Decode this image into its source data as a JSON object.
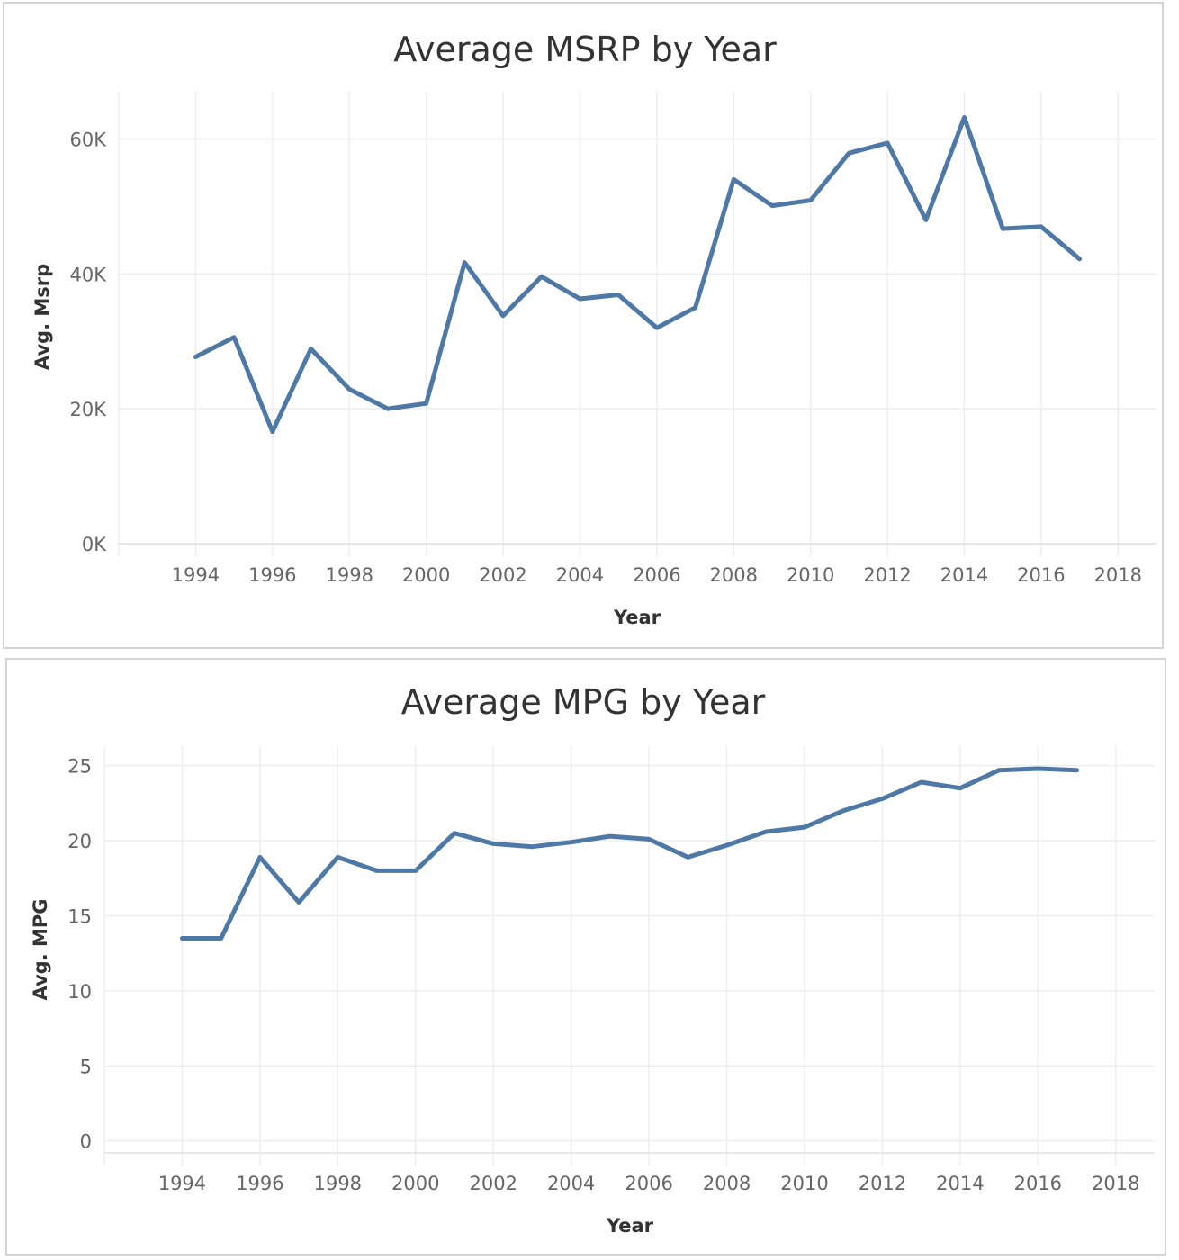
{
  "chart_data": [
    {
      "type": "line",
      "title": "Average MSRP by Year",
      "xlabel": "Year",
      "ylabel": "Avg. Msrp",
      "xlim": [
        1992,
        2019
      ],
      "ylim": [
        0,
        67000
      ],
      "x_ticks": [
        1994,
        1996,
        1998,
        2000,
        2002,
        2004,
        2006,
        2008,
        2010,
        2012,
        2014,
        2016,
        2018
      ],
      "y_ticks": [
        0,
        20000,
        40000,
        60000
      ],
      "y_tick_labels": [
        "0K",
        "20K",
        "40K",
        "60K"
      ],
      "grid": true,
      "color": "#4e79a7",
      "x": [
        1994,
        1995,
        1996,
        1997,
        1998,
        1999,
        2000,
        2001,
        2002,
        2003,
        2004,
        2005,
        2006,
        2007,
        2008,
        2009,
        2010,
        2011,
        2012,
        2013,
        2014,
        2015,
        2016,
        2017
      ],
      "values": [
        27700,
        30600,
        16600,
        28900,
        22900,
        20000,
        20800,
        41700,
        33800,
        39600,
        36300,
        36900,
        32000,
        35000,
        54000,
        50100,
        50900,
        57900,
        59400,
        48000,
        63200,
        46700,
        47000,
        42200
      ]
    },
    {
      "type": "line",
      "title": "Average MPG by Year",
      "xlabel": "Year",
      "ylabel": "Avg. MPG",
      "xlim": [
        1992,
        2019
      ],
      "ylim": [
        -0.8,
        26.3
      ],
      "x_ticks": [
        1994,
        1996,
        1998,
        2000,
        2002,
        2004,
        2006,
        2008,
        2010,
        2012,
        2014,
        2016,
        2018
      ],
      "y_ticks": [
        0,
        5,
        10,
        15,
        20,
        25
      ],
      "y_tick_labels": [
        "0",
        "5",
        "10",
        "15",
        "20",
        "25"
      ],
      "grid": true,
      "color": "#4e79a7",
      "x": [
        1994,
        1995,
        1996,
        1997,
        1998,
        1999,
        2000,
        2001,
        2002,
        2003,
        2004,
        2005,
        2006,
        2007,
        2008,
        2009,
        2010,
        2011,
        2012,
        2013,
        2014,
        2015,
        2016,
        2017
      ],
      "values": [
        13.5,
        13.5,
        18.9,
        15.9,
        18.9,
        18.0,
        18.0,
        20.5,
        19.8,
        19.6,
        19.9,
        20.3,
        20.1,
        18.9,
        19.7,
        20.6,
        20.9,
        22.0,
        22.8,
        23.9,
        23.5,
        24.7,
        24.8,
        24.7
      ]
    }
  ]
}
